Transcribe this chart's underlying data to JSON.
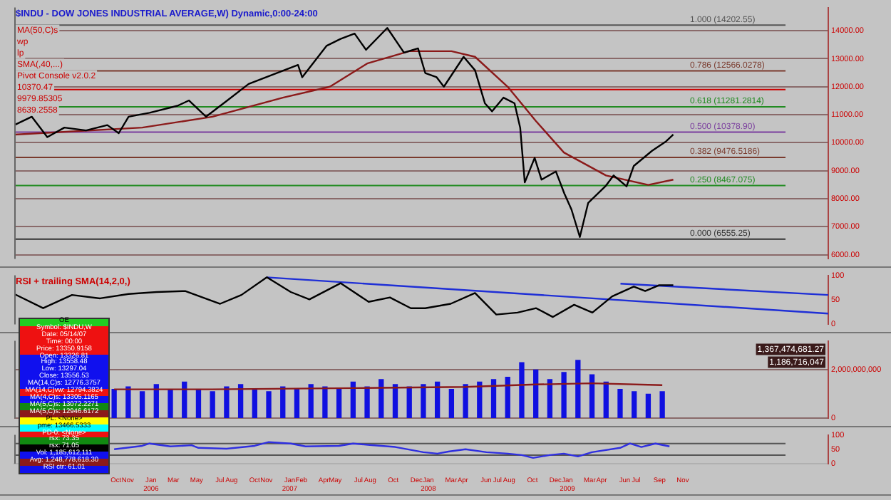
{
  "chart_data": [
    {
      "type": "line",
      "title": "$INDU - DOW JONES INDUSTRIAL AVERAGE,W) Dynamic,0:00-24:00",
      "xlim": [
        "2005-01-06",
        "2010-11-19"
      ],
      "ylim": [
        5850,
        14830
      ],
      "yticks": [
        {
          "value": 6000,
          "label": "6000.00"
        },
        {
          "value": 7000,
          "label": "7000.00"
        },
        {
          "value": 8000,
          "label": "8000.00"
        },
        {
          "value": 9000,
          "label": "9000.00"
        },
        {
          "value": 10000,
          "label": "10000.00"
        },
        {
          "value": 11000,
          "label": "11000.00"
        },
        {
          "value": 12000,
          "label": "12000.00"
        },
        {
          "value": 13000,
          "label": "13000.00"
        },
        {
          "value": 14000,
          "label": "14000.00"
        }
      ],
      "grid": "y",
      "tick_labels": "y",
      "series": [
        {
          "color": "#000000",
          "x": [
            "2005-01-06",
            "2005-02-21",
            "2005-04-03",
            "2005-05-18",
            "2005-07-14",
            "2005-09-08",
            "2005-10-08",
            "2005-11-03",
            "2005-12-28",
            "2006-03-12",
            "2006-04-11",
            "2006-05-26",
            "2006-07-21",
            "2006-09-15",
            "2006-11-28",
            "2007-01-23",
            "2007-02-03",
            "2007-04-08",
            "2007-05-15",
            "2007-06-21",
            "2007-07-21",
            "2007-09-15",
            "2007-10-29",
            "2007-12-05",
            "2007-12-24",
            "2008-01-23",
            "2008-02-11",
            "2008-04-03",
            "2008-05-03",
            "2008-05-29",
            "2008-06-17",
            "2008-07-17",
            "2008-08-15",
            "2008-08-30",
            "2008-09-11",
            "2008-10-07",
            "2008-10-25",
            "2008-12-02",
            "2008-12-24",
            "2009-01-12",
            "2009-02-03",
            "2009-02-25",
            "2009-04-11",
            "2009-05-03",
            "2009-06-06",
            "2009-06-25",
            "2009-08-12",
            "2009-09-18",
            "2009-10-07"
          ],
          "values": [
            10630,
            10930,
            10200,
            10540,
            10440,
            10630,
            10340,
            10930,
            11070,
            11320,
            11510,
            10930,
            11510,
            12100,
            12490,
            12780,
            12340,
            13460,
            13710,
            13900,
            13320,
            14100,
            13220,
            13370,
            12490,
            12340,
            12000,
            13070,
            12590,
            11410,
            11120,
            11610,
            11410,
            10530,
            8580,
            9460,
            8680,
            8970,
            8190,
            7610,
            6630,
            7850,
            8440,
            8830,
            8440,
            9170,
            9710,
            10050,
            10290
          ]
        },
        {
          "color": "#8b1a1a",
          "x": [
            "2005-01-06",
            "2005-12-09",
            "2006-06-12",
            "2006-12-14",
            "2007-04-17",
            "2007-07-24",
            "2007-11-12",
            "2008-03-02",
            "2008-05-03",
            "2008-07-28",
            "2008-10-10",
            "2008-12-23",
            "2009-04-13",
            "2009-08-02",
            "2009-10-07"
          ],
          "values": [
            10290,
            10540,
            10930,
            11610,
            12000,
            12830,
            13270,
            13270,
            13070,
            12000,
            10780,
            9650,
            8830,
            8490,
            8680
          ]
        }
      ],
      "ref_lines": [
        {
          "axis": "y",
          "value": 14202.55,
          "label": "1.000 (14202.55)",
          "color": "#555555"
        },
        {
          "axis": "y",
          "value": 12566.0278,
          "label": "0.786 (12566.0278)",
          "color": "#7a3b2e"
        },
        {
          "axis": "y",
          "value": 11900,
          "color": "#cc0000"
        },
        {
          "axis": "y",
          "value": 11281.2814,
          "label": "0.618 (11281.2814)",
          "color": "#228b22"
        },
        {
          "axis": "y",
          "value": 10378.9,
          "label": "0.500 (10378.90)",
          "color": "#7b3f9e"
        },
        {
          "axis": "y",
          "value": 9476.5186,
          "label": "0.382 (9476.5186)",
          "color": "#7a3b2e"
        },
        {
          "axis": "y",
          "value": 8467.075,
          "label": "0.250 (8467.075)",
          "color": "#228b22"
        },
        {
          "axis": "y",
          "value": 6555.25,
          "label": "0.000 (6555.25)",
          "color": "#333333"
        }
      ],
      "annotations": [
        "MA(50,C)s",
        "wp",
        "lp",
        "SMA(,40,...)",
        "Pivot Console v2.0.2",
        "10370.47",
        "9979.85305",
        "8639.2558"
      ]
    },
    {
      "type": "line",
      "title": "RSI + trailing SMA(14,2,0,)",
      "xlim": [
        "2005-01-06",
        "2010-11-19"
      ],
      "ylim": [
        0,
        100
      ],
      "yticks": [
        0,
        50,
        100
      ],
      "tick_labels": "y",
      "series": [
        {
          "color": "#000000",
          "x": [
            "2005-01-06",
            "2005-03-23",
            "2005-06-07",
            "2005-08-20",
            "2005-11-03",
            "2006-01-16",
            "2006-04-01",
            "2006-07-02",
            "2006-08-27",
            "2006-11-02",
            "2007-01-04",
            "2007-02-22",
            "2007-05-15",
            "2007-07-28",
            "2007-09-22",
            "2007-11-16",
            "2007-12-24",
            "2008-02-29",
            "2008-05-03",
            "2008-06-28",
            "2008-08-23",
            "2008-10-11",
            "2008-11-24",
            "2009-01-19",
            "2009-03-08",
            "2009-04-29",
            "2009-06-25",
            "2009-07-25",
            "2009-08-31",
            "2009-10-07"
          ],
          "values": [
            62,
            33,
            60,
            53,
            62,
            66,
            68,
            42,
            60,
            96,
            66,
            51,
            84,
            46,
            55,
            33,
            33,
            42,
            64,
            20,
            24,
            33,
            15,
            40,
            24,
            57,
            77,
            68,
            80,
            80
          ]
        },
        {
          "color": "#1f2fd6",
          "x": [
            "2006-11-02",
            "2010-11-19"
          ],
          "values": [
            96,
            22
          ]
        },
        {
          "color": "#1f2fd6",
          "x": [
            "2009-05-21",
            "2010-11-19"
          ],
          "values": [
            83,
            60
          ]
        }
      ]
    },
    {
      "type": "bar",
      "xlim": [
        "2005-01-06",
        "2010-11-19"
      ],
      "ylim": [
        0,
        3200000000
      ],
      "yticks": [
        {
          "value": 0,
          "label": "0"
        },
        {
          "value": 2000000000,
          "label": "2,000,000,000"
        }
      ],
      "grid": "y",
      "tick_labels": "y",
      "series": [
        {
          "color": "#1010e0",
          "x": [
            "2005-09-26",
            "2005-11-02",
            "2005-12-09",
            "2006-01-15",
            "2006-02-21",
            "2006-03-30",
            "2006-05-06",
            "2006-06-12",
            "2006-07-19",
            "2006-08-25",
            "2006-10-01",
            "2006-11-07",
            "2006-12-14",
            "2007-01-20",
            "2007-02-26",
            "2007-04-04",
            "2007-05-11",
            "2007-06-17",
            "2007-07-24",
            "2007-08-30",
            "2007-10-06",
            "2007-11-12",
            "2007-12-19",
            "2008-01-25",
            "2008-03-02",
            "2008-04-08",
            "2008-05-15",
            "2008-06-21",
            "2008-07-28",
            "2008-09-03",
            "2008-10-10",
            "2008-11-16",
            "2008-12-23",
            "2009-01-29",
            "2009-03-07",
            "2009-04-13",
            "2009-05-20",
            "2009-06-26",
            "2009-08-02",
            "2009-09-08"
          ],
          "values": [
            1200000000,
            1300000000,
            1100000000,
            1400000000,
            1200000000,
            1500000000,
            1200000000,
            1100000000,
            1300000000,
            1400000000,
            1200000000,
            1100000000,
            1300000000,
            1200000000,
            1400000000,
            1300000000,
            1200000000,
            1500000000,
            1300000000,
            1600000000,
            1400000000,
            1300000000,
            1400000000,
            1500000000,
            1200000000,
            1400000000,
            1500000000,
            1600000000,
            1700000000,
            2300000000,
            2000000000,
            1600000000,
            1900000000,
            2400000000,
            1800000000,
            1500000000,
            1200000000,
            1100000000,
            1000000000,
            1100000000
          ]
        },
        {
          "type": "line",
          "color": "#8b1a1a",
          "x": [
            "2005-09-26",
            "2006-06-12",
            "2007-06-17",
            "2008-04-08",
            "2008-10-10",
            "2009-03-07",
            "2009-09-08"
          ],
          "values": [
            1200000000,
            1200000000,
            1250000000,
            1300000000,
            1400000000,
            1450000000,
            1370000000
          ]
        }
      ],
      "annotations": [
        "1,367,474,681.27",
        "1,186,716,047"
      ]
    },
    {
      "type": "line",
      "xlim": [
        "2005-01-06",
        "2010-11-19"
      ],
      "ylim": [
        0,
        100
      ],
      "yticks": [
        0,
        50,
        100
      ],
      "xticks": [
        {
          "value": "2005-10-01",
          "label": "Oct"
        },
        {
          "value": "2005-11-01",
          "label": "Nov"
        },
        {
          "value": "2006-01-01",
          "label": "Jan\n2006"
        },
        {
          "value": "2006-03-01",
          "label": "Mar"
        },
        {
          "value": "2006-05-01",
          "label": "May"
        },
        {
          "value": "2006-07-01",
          "label": "Jul"
        },
        {
          "value": "2006-08-01",
          "label": "Aug"
        },
        {
          "value": "2006-10-01",
          "label": "Oct"
        },
        {
          "value": "2006-11-01",
          "label": "Nov"
        },
        {
          "value": "2007-01-01",
          "label": "Jan\n2007"
        },
        {
          "value": "2007-02-01",
          "label": "Feb"
        },
        {
          "value": "2007-04-01",
          "label": "Apr"
        },
        {
          "value": "2007-05-01",
          "label": "May"
        },
        {
          "value": "2007-07-01",
          "label": "Jul"
        },
        {
          "value": "2007-08-01",
          "label": "Aug"
        },
        {
          "value": "2007-10-01",
          "label": "Oct"
        },
        {
          "value": "2007-12-01",
          "label": "Dec"
        },
        {
          "value": "2008-01-01",
          "label": "Jan\n2008"
        },
        {
          "value": "2008-03-01",
          "label": "Mar"
        },
        {
          "value": "2008-04-01",
          "label": "Apr"
        },
        {
          "value": "2008-06-01",
          "label": "Jun"
        },
        {
          "value": "2008-07-01",
          "label": "Jul"
        },
        {
          "value": "2008-08-01",
          "label": "Aug"
        },
        {
          "value": "2008-10-01",
          "label": "Oct"
        },
        {
          "value": "2008-12-01",
          "label": "Dec"
        },
        {
          "value": "2009-01-01",
          "label": "Jan\n2009"
        },
        {
          "value": "2009-03-01",
          "label": "Mar"
        },
        {
          "value": "2009-04-01",
          "label": "Apr"
        },
        {
          "value": "2009-06-01",
          "label": "Jun"
        },
        {
          "value": "2009-07-01",
          "label": "Jul"
        },
        {
          "value": "2009-09-01",
          "label": "Sep"
        },
        {
          "value": "2009-11-01",
          "label": "Nov"
        }
      ],
      "series": [
        {
          "color": "#3030e0",
          "x": [
            "2005-09-26",
            "2005-12-09",
            "2005-12-28",
            "2006-02-21",
            "2006-04-18",
            "2006-05-06",
            "2006-07-19",
            "2006-10-01",
            "2006-11-07",
            "2007-01-04",
            "2007-02-12",
            "2007-05-11",
            "2007-06-17",
            "2007-07-31",
            "2007-10-06",
            "2007-12-19",
            "2008-01-25",
            "2008-02-23",
            "2008-04-08",
            "2008-06-02",
            "2008-07-28",
            "2008-09-03",
            "2008-10-03",
            "2008-11-16",
            "2008-12-23",
            "2009-01-29",
            "2009-03-07",
            "2009-05-20",
            "2009-06-15",
            "2009-07-15",
            "2009-08-21",
            "2009-09-27"
          ],
          "values": [
            50,
            62,
            70,
            60,
            64,
            55,
            52,
            62,
            75,
            70,
            60,
            62,
            70,
            65,
            58,
            40,
            35,
            42,
            50,
            40,
            35,
            30,
            20,
            30,
            35,
            25,
            40,
            55,
            70,
            58,
            70,
            60
          ]
        }
      ],
      "ref_lines": [
        {
          "axis": "y",
          "value": 70,
          "color": "#555555"
        },
        {
          "axis": "y",
          "value": 30,
          "color": "#555555"
        }
      ]
    },
    {
      "type": "other",
      "annotations": [
        "OE",
        "Symbol: $INDU,W",
        "Date: 05/14/07",
        "Time: 00:00",
        "Price: 13350.9158",
        "Open: 13326.81",
        "High: 13558.48",
        "Low: 13297.04",
        "Close: 13556.53",
        "MA(14,C)s: 12776.3757",
        "MA(14,C)vw: 12794.3824",
        "MA(4,C)s: 13305.1165",
        "MA(5,C)s: 13072.2271",
        "MA(5,C)s: 12946.6172",
        "PL: <None>",
        "pme: 13466.5333",
        "PD-0: <None>",
        "rsx: 73.35",
        "rsx: 71.05",
        "Vol: 1,185,612,111",
        "Avg: 1,248,778,618.30",
        "RSI ctr: 61.01"
      ],
      "colors": [
        "#22cc22",
        "#ee1111",
        "#ee1111",
        "#ee1111",
        "#ee1111",
        "#1010ee",
        "#1010ee",
        "#1010ee",
        "#1010ee",
        "#1010ee",
        "#ee1111",
        "#1010ee",
        "#118811",
        "#8b1a1a",
        "#ffff00",
        "#00ffff",
        "#ee1111",
        "#118811",
        "#000000",
        "#1010ee",
        "#8b1a1a",
        "#1010ee"
      ]
    }
  ]
}
